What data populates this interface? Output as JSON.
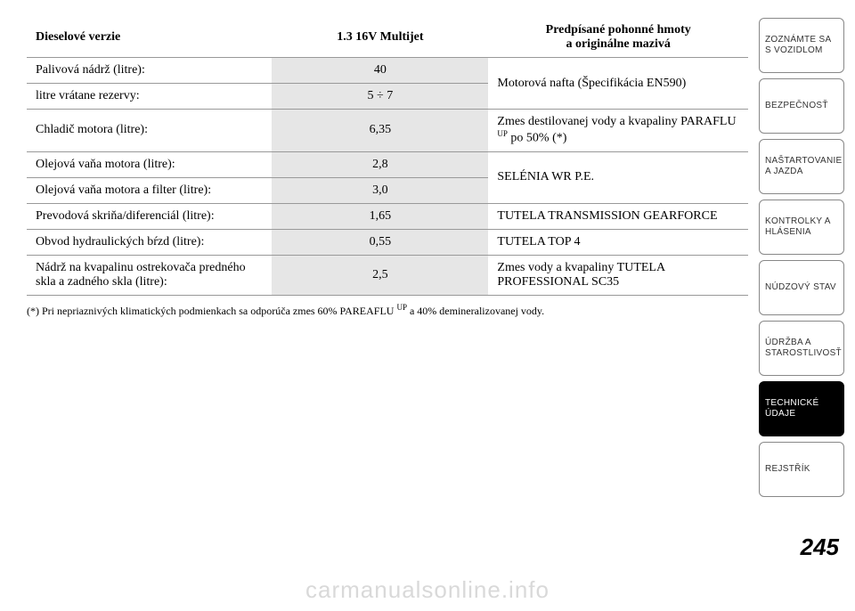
{
  "table": {
    "headers": {
      "col1": "Dieselové verzie",
      "col2": "1.3 16V Multijet",
      "col3_line1": "Predpísané pohonné hmoty",
      "col3_line2": "a originálne mazivá"
    },
    "rows": [
      {
        "label": "Palivová nádrž (litre):",
        "value": "40",
        "rec": "Motorová nafta (Špecifikácia EN590)",
        "rowspan": 2
      },
      {
        "label": "litre vrátane rezervy:",
        "value": "5 ÷ 7"
      },
      {
        "label": "Chladič motora (litre):",
        "value": "6,35",
        "rec_html": "Zmes destilovanej vody a kvapaliny PARAFLU <span class='sup'>UP</span> po 50% (*)",
        "rowspan": 1
      },
      {
        "label": "Olejová vaňa motora (litre):",
        "value": "2,8",
        "rec": "SELÉNIA WR P.E.",
        "rowspan": 2
      },
      {
        "label": "Olejová vaňa motora a filter (litre):",
        "value": "3,0"
      },
      {
        "label": "Prevodová skriňa/diferenciál (litre):",
        "value": "1,65",
        "rec": "TUTELA TRANSMISSION GEARFORCE",
        "rowspan": 1
      },
      {
        "label": "Obvod hydraulických bŕzd (litre):",
        "value": "0,55",
        "rec": "TUTELA TOP 4",
        "rowspan": 1
      },
      {
        "label": "Nádrž na kvapalinu ostrekovača predného skla a zadného skla (litre):",
        "value": "2,5",
        "rec": "Zmes vody a kvapaliny TUTELA PROFESSIONAL SC35",
        "rowspan": 1
      }
    ],
    "footnote_html": "(*) Pri nepriaznivých klimatických podmienkach sa odporúča zmes 60% PAREAFLU <span class='sup'>UP</span> a 40% demineralizovanej vody."
  },
  "sidebar": {
    "tabs": [
      {
        "label": "ZOZNÁMTE SA S VOZIDLOM",
        "active": false
      },
      {
        "label": "BEZPEČNOSŤ",
        "active": false
      },
      {
        "label": "NAŠTARTOVANIE A JAZDA",
        "active": false
      },
      {
        "label": "KONTROLKY A HLÁSENIA",
        "active": false
      },
      {
        "label": "NÚDZOVÝ STAV",
        "active": false
      },
      {
        "label": "ÚDRŽBA A STAROSTLIVOSŤ",
        "active": false
      },
      {
        "label": "TECHNICKÉ ÚDAJE",
        "active": true
      },
      {
        "label": "REJSTŘÍK",
        "active": false
      }
    ]
  },
  "page_number": "245",
  "watermark": "carmanualsonline.info"
}
